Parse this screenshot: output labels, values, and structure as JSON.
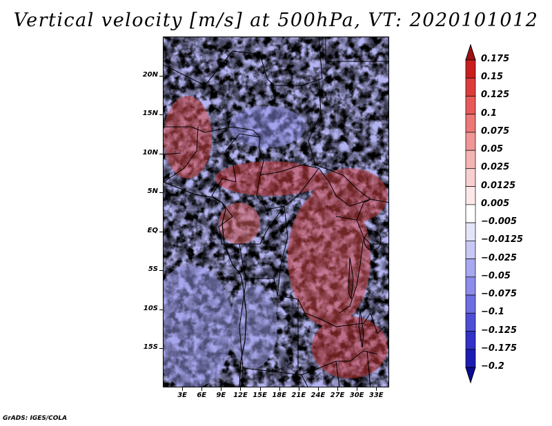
{
  "title": "Vertical velocity [m/s] at 500hPa, VT: 2020101012",
  "map": {
    "lat_labels": [
      "20N",
      "15N",
      "10N",
      "5N",
      "EQ",
      "5S",
      "10S",
      "15S"
    ],
    "lon_labels": [
      "3E",
      "6E",
      "9E",
      "12E",
      "15E",
      "18E",
      "21E",
      "24E",
      "27E",
      "30E",
      "33E"
    ],
    "lon_range": [
      0,
      35
    ],
    "lat_range": [
      -20,
      25
    ]
  },
  "colorbar": {
    "levels": [
      "0.175",
      "0.15",
      "0.125",
      "0.1",
      "0.075",
      "0.05",
      "0.025",
      "0.0125",
      "0.005",
      "-0.005",
      "-0.0125",
      "-0.025",
      "-0.05",
      "-0.075",
      "-0.1",
      "-0.125",
      "-0.175",
      "-0.2"
    ],
    "colors": [
      "#a01010",
      "#c81e1e",
      "#dc3c3c",
      "#e85a5a",
      "#ec7878",
      "#f09696",
      "#f5b4b4",
      "#f8d0d0",
      "#fce8e8",
      "#ffffff",
      "#e4e4fa",
      "#c8c8f5",
      "#a8a8f0",
      "#8c8ceb",
      "#6e6ee0",
      "#4e4ed4",
      "#3232c8",
      "#1c1cb4",
      "#0a0a96"
    ]
  },
  "credit": "GrADS: IGES/COLA"
}
